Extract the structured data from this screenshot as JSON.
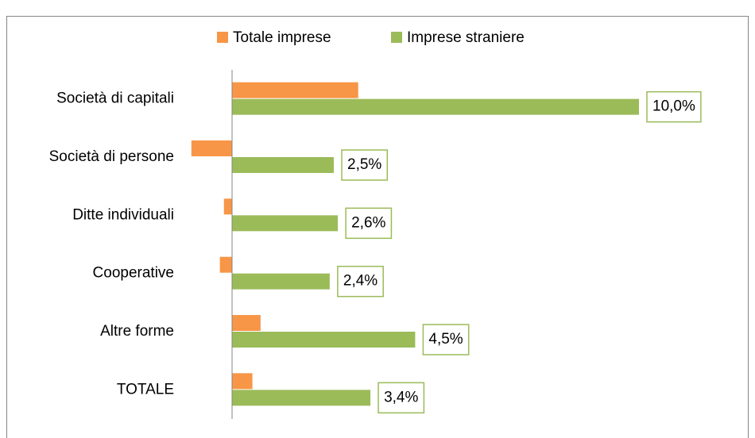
{
  "chart_data": {
    "type": "hbar",
    "categories": [
      "Società di capitali",
      "Società di persone",
      "Ditte individuali",
      "Cooperative",
      "Altre forme",
      "TOTALE"
    ],
    "series": [
      {
        "name": "Totale imprese",
        "color": "#f79646",
        "values": [
          3.1,
          -1.0,
          -0.2,
          -0.3,
          0.7,
          0.5
        ]
      },
      {
        "name": "Imprese straniere",
        "color": "#9bbb59",
        "values": [
          10.0,
          2.5,
          2.6,
          2.4,
          4.5,
          3.4
        ],
        "value_labels": [
          "10,0%",
          "2,5%",
          "2,6%",
          "2,4%",
          "4,5%",
          "3,4%"
        ]
      }
    ],
    "xlim": [
      -1,
      11
    ],
    "legend": "top"
  }
}
